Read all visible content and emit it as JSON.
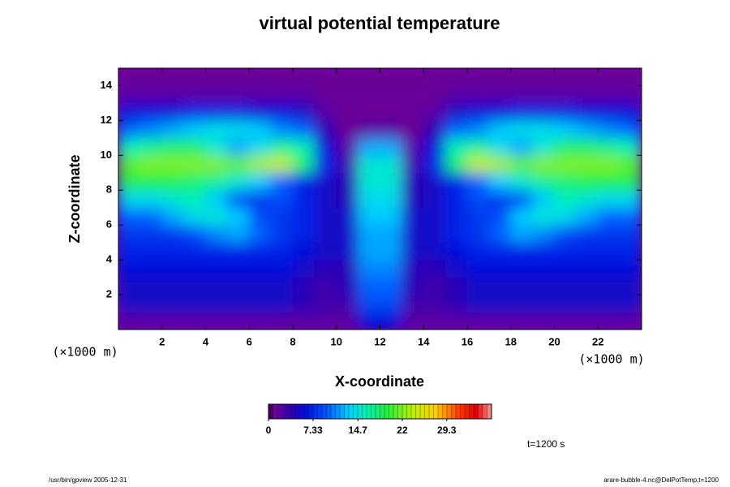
{
  "chart_data": {
    "type": "heatmap",
    "title": "virtual potential temperature",
    "xlabel": "X-coordinate",
    "ylabel": "Z-coordinate",
    "xunit": "(×1000 m)",
    "yunit": "(×1000 m)",
    "annotation": "t=1200 s",
    "footer_left": "/usr/bin/gpview 2005-12-31",
    "footer_right": "arare-bubble-4.nc@DelPotTemp,t=1200",
    "xlim": [
      0,
      24
    ],
    "ylim": [
      0,
      15
    ],
    "xticks": [
      2,
      4,
      6,
      8,
      10,
      12,
      14,
      16,
      18,
      20,
      22
    ],
    "yticks": [
      2,
      4,
      6,
      8,
      10,
      12,
      14
    ],
    "clim": [
      0,
      36.67
    ],
    "cticks": [
      0,
      7.33,
      14.7,
      22,
      29.3
    ],
    "x": [
      0.5,
      1.5,
      2.5,
      3.5,
      4.5,
      5.5,
      6.5,
      7.5,
      8.5,
      9.5,
      10.5,
      11.5,
      12.5,
      13.5,
      14.5,
      15.5,
      16.5,
      17.5,
      18.5,
      19.5,
      20.5,
      21.5,
      22.5,
      23.5
    ],
    "y": [
      0.5,
      1.5,
      2.5,
      3.5,
      4.5,
      5.5,
      6.5,
      7.5,
      8.5,
      9.5,
      10.5,
      11.5,
      12.5,
      13.5,
      14.5
    ],
    "values": [
      [
        2,
        2,
        2,
        2,
        2,
        2,
        2,
        2,
        2,
        2,
        2,
        6,
        6,
        2,
        2,
        2,
        2,
        2,
        2,
        2,
        2,
        2,
        2,
        2
      ],
      [
        5,
        5,
        5,
        5,
        5,
        5,
        5,
        5,
        4,
        3,
        3,
        9,
        9,
        3,
        3,
        4,
        5,
        5,
        5,
        5,
        5,
        5,
        5,
        5
      ],
      [
        5,
        5,
        5,
        5,
        5,
        5,
        5,
        5,
        4,
        3,
        4,
        10,
        10,
        4,
        3,
        4,
        5,
        5,
        5,
        5,
        5,
        5,
        5,
        5
      ],
      [
        6,
        6,
        6,
        6,
        6,
        6,
        6,
        6,
        5,
        4,
        4,
        11,
        11,
        4,
        4,
        5,
        6,
        6,
        6,
        6,
        6,
        6,
        6,
        6
      ],
      [
        7,
        7,
        7,
        7,
        7,
        7,
        7,
        7,
        6,
        5,
        5,
        12,
        12,
        5,
        5,
        6,
        7,
        7,
        7,
        7,
        7,
        7,
        7,
        7
      ],
      [
        8,
        8,
        8,
        9,
        11,
        12,
        10,
        8,
        7,
        5,
        5,
        12,
        12,
        5,
        5,
        7,
        8,
        10,
        12,
        11,
        9,
        8,
        8,
        8
      ],
      [
        10,
        10,
        12,
        14,
        15,
        13,
        9,
        8,
        7,
        5,
        5,
        13,
        13,
        5,
        5,
        7,
        8,
        9,
        13,
        15,
        14,
        12,
        10,
        10
      ],
      [
        14,
        14,
        15,
        16,
        13,
        9,
        8,
        9,
        7,
        5,
        4,
        14,
        14,
        4,
        5,
        7,
        9,
        8,
        9,
        13,
        16,
        15,
        14,
        14
      ],
      [
        19,
        19,
        19,
        18,
        17,
        15,
        13,
        10,
        7,
        5,
        4,
        15,
        15,
        4,
        5,
        7,
        10,
        13,
        15,
        17,
        18,
        19,
        19,
        19
      ],
      [
        21,
        22,
        22,
        22,
        22,
        21,
        23,
        24,
        18,
        7,
        3,
        15,
        15,
        3,
        7,
        18,
        24,
        23,
        21,
        22,
        22,
        22,
        22,
        21
      ],
      [
        16,
        17,
        18,
        18,
        15,
        12,
        14,
        17,
        16,
        6,
        2,
        12,
        12,
        2,
        6,
        16,
        17,
        14,
        12,
        15,
        18,
        18,
        17,
        16
      ],
      [
        10,
        11,
        12,
        13,
        14,
        14,
        13,
        11,
        10,
        4,
        1,
        2,
        2,
        1,
        4,
        10,
        11,
        13,
        14,
        14,
        13,
        12,
        11,
        10
      ],
      [
        6,
        6,
        6,
        7,
        7,
        7,
        6,
        6,
        5,
        2,
        1,
        1,
        1,
        1,
        2,
        5,
        6,
        6,
        7,
        7,
        7,
        6,
        6,
        6
      ],
      [
        2,
        2,
        2,
        2,
        2,
        2,
        2,
        2,
        2,
        1,
        1,
        1,
        1,
        1,
        1,
        2,
        2,
        2,
        2,
        2,
        2,
        2,
        2,
        2
      ],
      [
        1,
        1,
        1,
        1,
        1,
        1,
        1,
        1,
        1,
        1,
        1,
        1,
        1,
        1,
        1,
        1,
        1,
        1,
        1,
        1,
        1,
        1,
        1,
        1
      ]
    ]
  }
}
